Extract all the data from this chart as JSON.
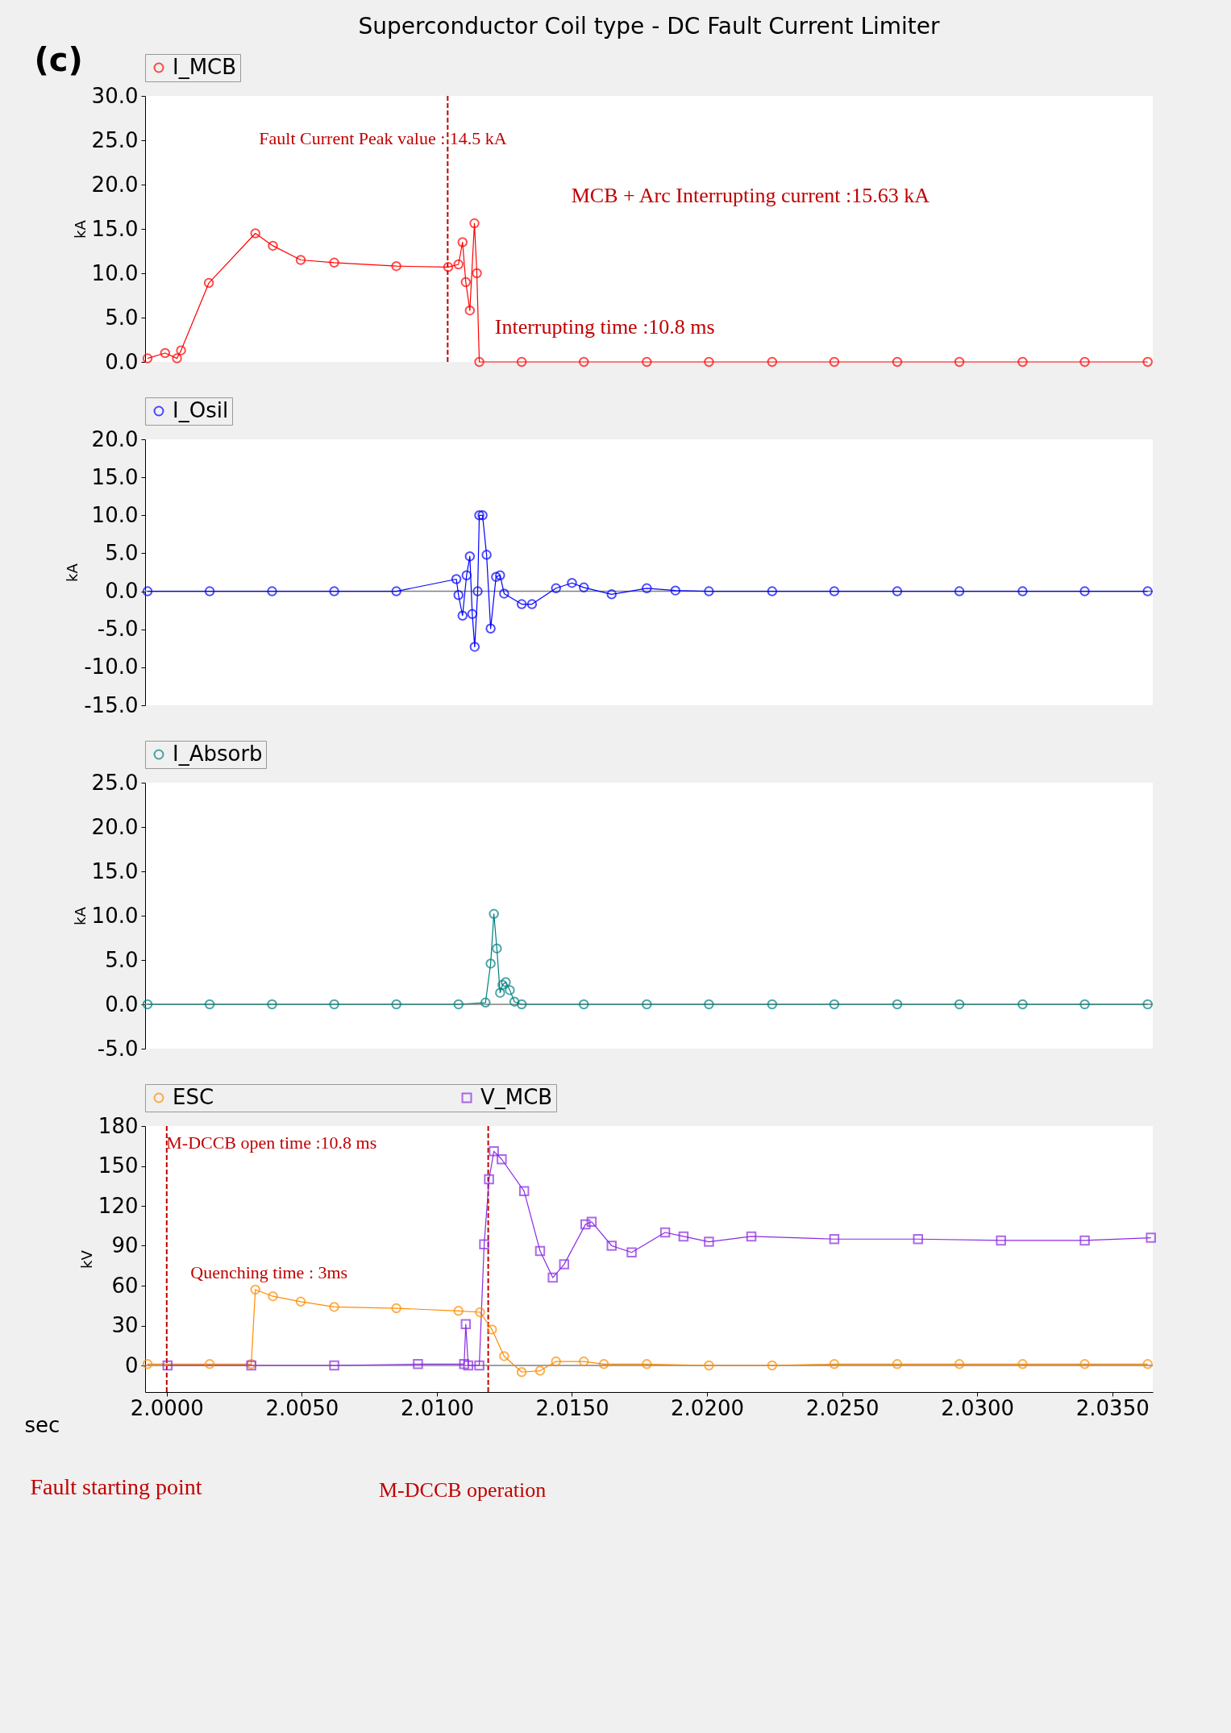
{
  "chart_data": [
    {
      "type": "line",
      "title": "Superconductor Coil type - DC Fault Current Limiter",
      "ylabel": "kA",
      "legend": "top",
      "marker": "circle",
      "tick_labels": "y",
      "xlim": [
        1.9992,
        2.0365
      ],
      "ylim": [
        0,
        30
      ],
      "yticks": [
        {
          "value": 0,
          "label": "0.0"
        },
        {
          "value": 5,
          "label": "5.0"
        },
        {
          "value": 10,
          "label": "10.0"
        },
        {
          "value": 15,
          "label": "15.0"
        },
        {
          "value": 20,
          "label": "20.0"
        },
        {
          "value": 25,
          "label": "25.0"
        },
        {
          "value": 30,
          "label": "30.0"
        }
      ],
      "annotations": [
        "(c)",
        "Fault Current Peak value : 14.5 kA",
        "MCB + Arc Interrupting current :15.63 kA",
        "Interrupting time :10.8 ms"
      ],
      "ref_lines": [
        {
          "axis": "x",
          "value": 2.0104,
          "color": "#c00000",
          "line_style": "dashed"
        }
      ],
      "series": [
        {
          "name": "I_MCB",
          "color": "#ff0000",
          "x": [
            1.99929,
            1.99994,
            2.00038,
            2.00053,
            2.00156,
            2.00328,
            2.00393,
            2.00496,
            2.0062,
            2.0085,
            2.01042,
            2.0108,
            2.01095,
            2.01107,
            2.01122,
            2.01139,
            2.01148,
            2.01157,
            2.01314,
            2.01544,
            2.01777,
            2.02007,
            2.02241,
            2.02471,
            2.02704,
            2.02934,
            2.03168,
            2.03398,
            2.03631
          ],
          "values": [
            0.4,
            1.0,
            0.4,
            1.3,
            8.9,
            14.5,
            13.1,
            11.5,
            11.2,
            10.8,
            10.7,
            11.0,
            13.5,
            9.0,
            5.8,
            15.63,
            10.0,
            0,
            0,
            0,
            0,
            0,
            0,
            0,
            0,
            0,
            0,
            0,
            0
          ]
        }
      ]
    },
    {
      "type": "line",
      "ylabel": "kA",
      "legend": "top",
      "marker": "circle",
      "tick_labels": "y",
      "xlim": [
        1.9992,
        2.0365
      ],
      "ylim": [
        -15,
        20
      ],
      "yticks": [
        {
          "value": -15,
          "label": "-15.0"
        },
        {
          "value": -10,
          "label": "-10.0"
        },
        {
          "value": -5,
          "label": "-5.0"
        },
        {
          "value": 0,
          "label": "0.0"
        },
        {
          "value": 5,
          "label": "5.0"
        },
        {
          "value": 10,
          "label": "10.0"
        },
        {
          "value": 15,
          "label": "15.0"
        },
        {
          "value": 20,
          "label": "20.0"
        }
      ],
      "ref_lines": [
        {
          "axis": "y",
          "value": 0,
          "color": "#808080"
        }
      ],
      "series": [
        {
          "name": "I_Osil",
          "color": "#0000ff",
          "x": [
            1.99929,
            2.00159,
            2.0039,
            2.0062,
            2.0085,
            2.01072,
            2.0108,
            2.01095,
            2.0111,
            2.01122,
            2.01131,
            2.0114,
            2.01151,
            2.01157,
            2.01169,
            2.01184,
            2.01199,
            2.01219,
            2.01234,
            2.01249,
            2.01314,
            2.01352,
            2.01441,
            2.015,
            2.01544,
            2.01647,
            2.01777,
            2.01883,
            2.02007,
            2.02241,
            2.02471,
            2.02704,
            2.02934,
            2.03168,
            2.03398,
            2.03631
          ],
          "values": [
            0,
            0,
            0,
            0,
            0,
            1.6,
            -0.5,
            -3.2,
            2.1,
            4.6,
            -3.0,
            -7.3,
            0,
            10.0,
            10.0,
            4.8,
            -4.9,
            1.9,
            2.1,
            -0.3,
            -1.7,
            -1.7,
            0.4,
            1.1,
            0.5,
            -0.4,
            0.4,
            0.1,
            0,
            0,
            0,
            0,
            0,
            0,
            0,
            0
          ]
        }
      ]
    },
    {
      "type": "line",
      "ylabel": "kA",
      "legend": "top",
      "marker": "circle",
      "tick_labels": "y",
      "xlim": [
        1.9992,
        2.0365
      ],
      "ylim": [
        -5,
        25
      ],
      "yticks": [
        {
          "value": -5,
          "label": "-5.0"
        },
        {
          "value": 0,
          "label": "0.0"
        },
        {
          "value": 5,
          "label": "5.0"
        },
        {
          "value": 10,
          "label": "10.0"
        },
        {
          "value": 15,
          "label": "15.0"
        },
        {
          "value": 20,
          "label": "20.0"
        },
        {
          "value": 25,
          "label": "25.0"
        }
      ],
      "ref_lines": [
        {
          "axis": "y",
          "value": 0,
          "color": "#808080"
        }
      ],
      "series": [
        {
          "name": "I_Absorb",
          "color": "#008080",
          "x": [
            1.99929,
            2.00159,
            2.0039,
            2.0062,
            2.0085,
            2.0108,
            2.0118,
            2.01199,
            2.01211,
            2.01222,
            2.01234,
            2.01243,
            2.01255,
            2.0127,
            2.01287,
            2.01314,
            2.01544,
            2.01777,
            2.02007,
            2.02241,
            2.02471,
            2.02704,
            2.02934,
            2.03168,
            2.03398,
            2.03631
          ],
          "values": [
            0,
            0,
            0,
            0,
            0,
            0,
            0.2,
            4.6,
            10.2,
            6.3,
            1.3,
            2.2,
            2.5,
            1.6,
            0.3,
            0,
            0,
            0,
            0,
            0,
            0,
            0,
            0,
            0,
            0,
            0
          ]
        }
      ]
    },
    {
      "type": "line",
      "xlabel": "sec",
      "ylabel": "kV",
      "legend": "top",
      "marker": "circle",
      "xlim": [
        1.9992,
        2.0365
      ],
      "xticks": [
        {
          "value": 2.0,
          "label": "2.0000"
        },
        {
          "value": 2.005,
          "label": "2.0050"
        },
        {
          "value": 2.01,
          "label": "2.0100"
        },
        {
          "value": 2.015,
          "label": "2.0150"
        },
        {
          "value": 2.02,
          "label": "2.0200"
        },
        {
          "value": 2.025,
          "label": "2.0250"
        },
        {
          "value": 2.03,
          "label": "2.0300"
        },
        {
          "value": 2.035,
          "label": "2.0350"
        }
      ],
      "ylim": [
        -20,
        180
      ],
      "yticks": [
        0,
        30,
        60,
        90,
        120,
        150,
        180
      ],
      "annotations": [
        "M-DCCB open time :10.8   ms",
        "Quenching time : 3ms",
        "Fault starting point",
        "M-DCCB operation"
      ],
      "ref_lines": [
        {
          "axis": "y",
          "value": 0,
          "color": "#808080"
        },
        {
          "axis": "x",
          "value": 2.0,
          "color": "#c00000",
          "line_style": "dashed"
        },
        {
          "axis": "x",
          "value": 2.0119,
          "color": "#c00000",
          "line_style": "dashed"
        }
      ],
      "series": [
        {
          "name": "ESC",
          "color": "#ff8c00",
          "x": [
            1.99929,
            2.00159,
            2.00313,
            2.00328,
            2.00393,
            2.00496,
            2.0062,
            2.0085,
            2.0108,
            2.0116,
            2.01204,
            2.01249,
            2.01314,
            2.01382,
            2.01441,
            2.01544,
            2.01618,
            2.01777,
            2.02007,
            2.02241,
            2.02471,
            2.02704,
            2.02934,
            2.03168,
            2.03398,
            2.03631
          ],
          "values": [
            1,
            1,
            1,
            57,
            52,
            48,
            44,
            43,
            41,
            40,
            27,
            7,
            -5,
            -4,
            3,
            3,
            1,
            1,
            0,
            0,
            1,
            1,
            1,
            1,
            1,
            1
          ]
        },
        {
          "name": "V_MCB",
          "color": "#8a2be2",
          "marker": "square",
          "x": [
            2.00003,
            2.00313,
            2.0062,
            2.0093,
            2.01101,
            2.01107,
            2.01116,
            2.01157,
            2.01175,
            2.01193,
            2.01211,
            2.0124,
            2.01323,
            2.01382,
            2.01429,
            2.01471,
            2.0155,
            2.01573,
            2.01647,
            2.01721,
            2.01845,
            2.01913,
            2.02007,
            2.02164,
            2.02471,
            2.02781,
            2.03088,
            2.03398,
            2.03643
          ],
          "values": [
            0,
            0,
            0,
            1,
            1,
            31,
            0,
            0,
            91,
            140,
            161,
            155,
            131,
            86,
            66,
            76,
            106,
            108,
            90,
            85,
            100,
            97,
            93,
            97,
            95,
            95,
            94,
            94,
            96
          ]
        }
      ]
    }
  ]
}
